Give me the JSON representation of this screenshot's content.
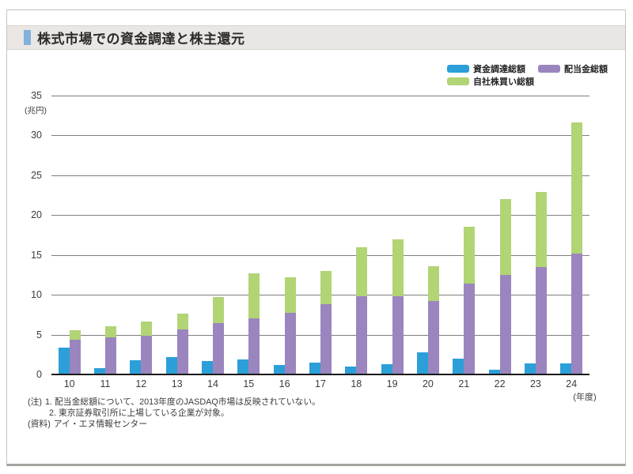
{
  "page": {
    "title": "株式市場での資金調達と株主還元"
  },
  "legend": [
    {
      "label": "資金調達総額",
      "color": "#2c9fd8"
    },
    {
      "label": "配当金総額",
      "color": "#9a85bf"
    },
    {
      "label": "自社株買い総額",
      "color": "#b1d475"
    }
  ],
  "chart_data": {
    "type": "bar",
    "title": "株式市場での資金調達と株主還元",
    "unit_label": "(兆円)",
    "xaxis_unit_label": "(年度)",
    "categories": [
      "10",
      "11",
      "12",
      "13",
      "14",
      "15",
      "16",
      "17",
      "18",
      "19",
      "20",
      "21",
      "22",
      "23",
      "24"
    ],
    "series": [
      {
        "name": "資金調達総額",
        "color": "#2c9fd8",
        "layout": "standalone",
        "values": [
          3.4,
          0.8,
          1.8,
          2.2,
          1.7,
          1.9,
          1.2,
          1.5,
          1.0,
          1.3,
          2.8,
          2.0,
          0.6,
          1.4,
          1.4
        ]
      },
      {
        "name": "配当金総額",
        "color": "#9a85bf",
        "layout": "stacked",
        "values": [
          4.4,
          4.7,
          4.9,
          5.7,
          6.4,
          7.0,
          7.7,
          8.8,
          9.8,
          9.8,
          9.2,
          11.4,
          12.5,
          13.5,
          15.2
        ]
      },
      {
        "name": "自社株買い総額",
        "color": "#b1d475",
        "layout": "stacked",
        "values": [
          1.2,
          1.4,
          1.7,
          1.9,
          3.3,
          5.7,
          4.5,
          4.2,
          6.2,
          7.2,
          4.4,
          7.1,
          9.5,
          9.4,
          16.4
        ]
      }
    ],
    "ylim": [
      0,
      35
    ],
    "ytick_interval": 5,
    "yticks": [
      0,
      5,
      10,
      15,
      20,
      25,
      30,
      35
    ],
    "grid": true,
    "legend_position": "top-right"
  },
  "notes": {
    "prefix": "(注)",
    "items": [
      "1. 配当金総額について、2013年度のJASDAQ市場は反映されていない。",
      "2. 東京証券取引所に上場している企業が対象。"
    ],
    "source_prefix": "(資料)",
    "source": "アイ・エヌ情報センター"
  }
}
